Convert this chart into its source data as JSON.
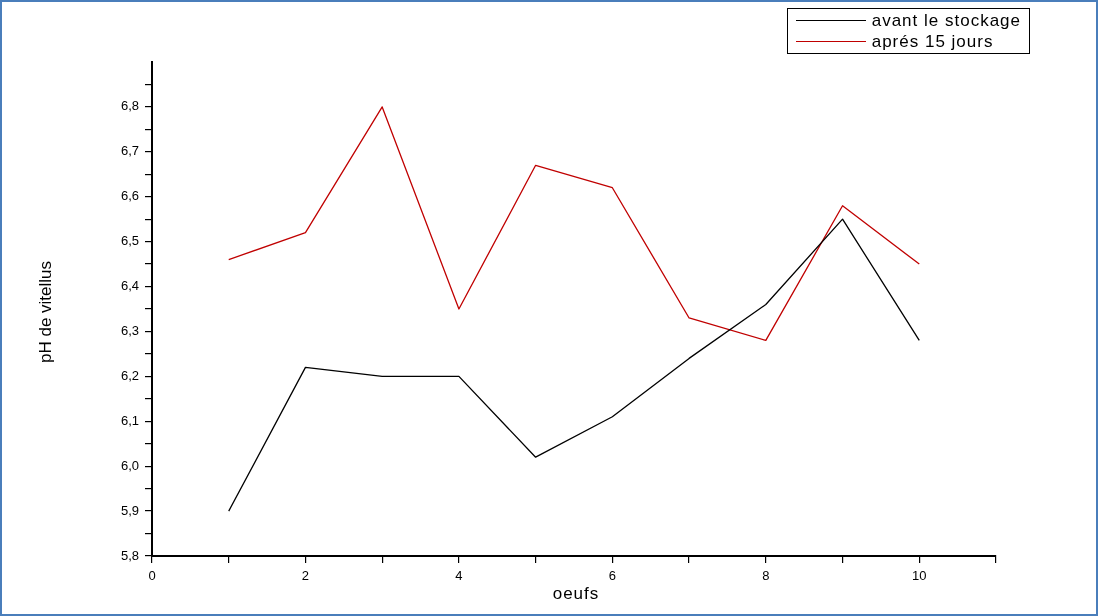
{
  "chart_data": {
    "type": "line",
    "xlabel": "oeufs",
    "ylabel": "pH de vitellus",
    "x": [
      1,
      2,
      3,
      4,
      5,
      6,
      7,
      8,
      9,
      10
    ],
    "series": [
      {
        "name": "avant le stockage",
        "color": "#000000",
        "values": [
          5.9,
          6.22,
          6.2,
          6.2,
          6.02,
          6.11,
          6.24,
          6.36,
          6.55,
          6.28
        ]
      },
      {
        "name": "aprés 15 jours",
        "color": "#c00000",
        "values": [
          6.46,
          6.52,
          6.8,
          6.35,
          6.67,
          6.62,
          6.33,
          6.28,
          6.58,
          6.45
        ]
      }
    ],
    "xlim": [
      0,
      11
    ],
    "xticks": [
      0,
      {
        "value": 1,
        "label": null
      },
      2,
      {
        "value": 3,
        "label": null
      },
      4,
      {
        "value": 5,
        "label": null
      },
      6,
      {
        "value": 7,
        "label": null
      },
      8,
      {
        "value": 9,
        "label": null
      },
      10,
      {
        "value": 11,
        "label": null
      }
    ],
    "ylim": [
      5.8,
      6.9
    ],
    "yticks": [
      {
        "value": 5.8,
        "label": "5,8"
      },
      {
        "value": 5.85,
        "label": null
      },
      {
        "value": 5.9,
        "label": "5,9"
      },
      {
        "value": 5.95,
        "label": null
      },
      {
        "value": 6.0,
        "label": "6,0"
      },
      {
        "value": 6.05,
        "label": null
      },
      {
        "value": 6.1,
        "label": "6,1"
      },
      {
        "value": 6.15,
        "label": null
      },
      {
        "value": 6.2,
        "label": "6,2"
      },
      {
        "value": 6.25,
        "label": null
      },
      {
        "value": 6.3,
        "label": "6,3"
      },
      {
        "value": 6.35,
        "label": null
      },
      {
        "value": 6.4,
        "label": "6,4"
      },
      {
        "value": 6.45,
        "label": null
      },
      {
        "value": 6.5,
        "label": "6,5"
      },
      {
        "value": 6.55,
        "label": null
      },
      {
        "value": 6.6,
        "label": "6,6"
      },
      {
        "value": 6.65,
        "label": null
      },
      {
        "value": 6.7,
        "label": "6,7"
      },
      {
        "value": 6.75,
        "label": null
      },
      {
        "value": 6.8,
        "label": "6,8"
      },
      {
        "value": 6.85,
        "label": null
      }
    ],
    "grid": false,
    "legend": "top right",
    "marker": "none",
    "line_style": "solid"
  }
}
